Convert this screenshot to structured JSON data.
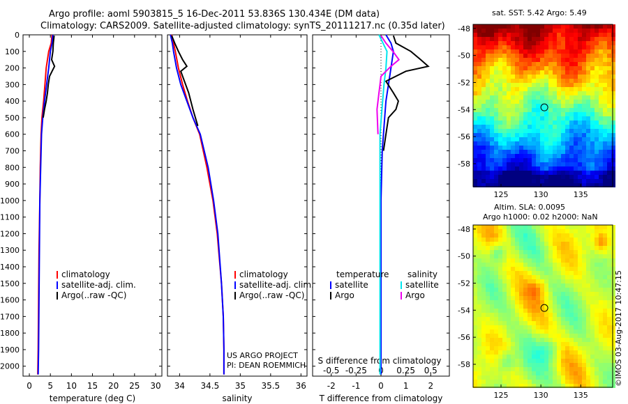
{
  "header": {
    "title_line1": "Argo profile: aoml 5903815_5 16-Dec-2011 53.836S 130.434E (DM data)",
    "title_line2": "Climatology: CARS2009. Satellite-adjusted climatology: synTS_20111217.nc (0.35d later)"
  },
  "colors": {
    "climatology": "#ff0000",
    "satellite": "#0000ff",
    "argo": "#000000",
    "salinity_satellite": "#00e5ee",
    "salinity_argo": "#ee00ee"
  },
  "chart_data": [
    {
      "type": "line",
      "id": "temperature",
      "xlabel": "temperature (deg C)",
      "ylabel": "",
      "xlim": [
        -1.5,
        31.5
      ],
      "ylim": [
        2060,
        0
      ],
      "xticks": [
        0,
        5,
        10,
        15,
        20,
        25,
        30
      ],
      "yticks": [
        0,
        100,
        200,
        300,
        400,
        500,
        600,
        700,
        800,
        900,
        1000,
        1100,
        1200,
        1300,
        1400,
        1500,
        1600,
        1700,
        1800,
        1900,
        2000
      ],
      "legend": [
        "climatology",
        "satellite-adj. clim.",
        "Argo(..raw -QC)"
      ],
      "series": [
        {
          "name": "climatology",
          "color": "#ff0000",
          "x": [
            5.4,
            5.2,
            4.6,
            4.0,
            3.7,
            3.4,
            3.0,
            2.8,
            2.6,
            2.5,
            2.3,
            2.2,
            2.1,
            2.0
          ],
          "y": [
            0,
            50,
            100,
            200,
            300,
            400,
            500,
            600,
            800,
            1000,
            1300,
            1600,
            1900,
            2050
          ]
        },
        {
          "name": "satellite-adj. clim.",
          "color": "#0000ff",
          "x": [
            5.6,
            5.4,
            5.0,
            4.6,
            4.1,
            3.6,
            3.2,
            2.9,
            2.7,
            2.5,
            2.4,
            2.3,
            2.2,
            2.1
          ],
          "y": [
            0,
            50,
            100,
            200,
            300,
            400,
            500,
            600,
            800,
            1000,
            1300,
            1600,
            1900,
            2050
          ]
        },
        {
          "name": "Argo(..raw -QC)",
          "color": "#000000",
          "x": [
            5.9,
            5.7,
            5.6,
            5.3,
            6.0,
            5.4,
            4.8,
            4.5,
            4.3,
            4.0,
            3.6,
            3.3
          ],
          "y": [
            5,
            50,
            100,
            150,
            190,
            220,
            250,
            300,
            350,
            400,
            450,
            500
          ]
        }
      ]
    },
    {
      "type": "line",
      "id": "salinity",
      "xlabel": "salinity",
      "ylabel": "",
      "xlim": [
        33.8,
        36.1
      ],
      "ylim": [
        2060,
        0
      ],
      "xticks": [
        34,
        34.5,
        35,
        35.5,
        36
      ],
      "xtick_labels": [
        "34",
        "34.5",
        "35",
        "35.5",
        "36"
      ],
      "legend": [
        "climatology",
        "satellite-adj. clim.",
        "Argo(..raw -QC)"
      ],
      "series": [
        {
          "name": "climatology",
          "color": "#ff0000",
          "x": [
            33.87,
            33.9,
            33.93,
            33.98,
            34.05,
            34.13,
            34.22,
            34.33,
            34.45,
            34.55,
            34.62,
            34.69,
            34.72,
            34.73,
            34.73
          ],
          "y": [
            0,
            50,
            100,
            200,
            300,
            400,
            500,
            600,
            800,
            1000,
            1200,
            1500,
            1700,
            1900,
            2050
          ]
        },
        {
          "name": "satellite-adj. clim.",
          "color": "#0000ff",
          "x": [
            33.85,
            33.88,
            33.9,
            33.95,
            34.02,
            34.12,
            34.22,
            34.34,
            34.47,
            34.56,
            34.63,
            34.69,
            34.72,
            34.73,
            34.73
          ],
          "y": [
            0,
            50,
            100,
            200,
            300,
            400,
            500,
            600,
            800,
            1000,
            1200,
            1500,
            1700,
            1900,
            2050
          ]
        },
        {
          "name": "Argo(..raw -QC)",
          "color": "#000000",
          "x": [
            33.87,
            33.92,
            33.98,
            34.05,
            34.12,
            34.02,
            34.08,
            34.15,
            34.22,
            34.3
          ],
          "y": [
            5,
            50,
            100,
            150,
            190,
            220,
            280,
            350,
            450,
            550
          ]
        }
      ],
      "annotation_line1": "US ARGO PROJECT",
      "annotation_line2": "PI: DEAN ROEMMICH"
    },
    {
      "type": "line",
      "id": "differences",
      "xlabel": "T difference from climatology",
      "xlabel_top": "S difference from climatology",
      "xlim": [
        -2.75,
        2.75
      ],
      "ylim": [
        2060,
        0
      ],
      "xticks": [
        -2,
        -1,
        0,
        1,
        2
      ],
      "xtick_labels": [
        "-2",
        "-1",
        "0",
        "1",
        "2"
      ],
      "xticks_top_labels": [
        "-0.5",
        "-0.25",
        "0",
        "0.25",
        "0.5"
      ],
      "xticks_top_values": [
        -0.5,
        -0.25,
        0,
        0.25,
        0.5
      ],
      "zero_line": "dotted",
      "legend_temperature_title": "temperature",
      "legend_salinity_title": "salinity",
      "legend_temperature": [
        "satellite",
        "Argo"
      ],
      "legend_salinity": [
        "satellite",
        "Argo"
      ],
      "series": [
        {
          "name": "temperature satellite",
          "color": "#0000ff",
          "x": [
            0.2,
            0.4,
            0.5,
            0.4,
            0.3,
            0.2,
            0.15,
            0.05,
            0.0,
            0.0
          ],
          "y": [
            0,
            50,
            100,
            200,
            300,
            400,
            500,
            700,
            1000,
            2050
          ]
        },
        {
          "name": "temperature Argo",
          "color": "#000000",
          "x": [
            0.5,
            0.6,
            1.2,
            1.6,
            1.9,
            1.0,
            0.2,
            0.5,
            0.7,
            0.6,
            0.3,
            0.2,
            0.1
          ],
          "y": [
            5,
            50,
            100,
            150,
            190,
            220,
            280,
            350,
            400,
            450,
            500,
            600,
            700
          ]
        },
        {
          "name": "salinity satellite",
          "color": "#00e5ee",
          "x": [
            -0.02,
            0.02,
            0.06,
            0.05,
            0.03,
            0.01,
            -0.01,
            -0.01,
            -0.01
          ],
          "y": [
            0,
            50,
            100,
            200,
            300,
            450,
            600,
            1000,
            2050
          ]
        },
        {
          "name": "salinity Argo",
          "color": "#ee00ee",
          "x": [
            0.0,
            0.05,
            0.12,
            0.18,
            0.1,
            0.0,
            -0.01,
            -0.02,
            -0.04,
            -0.03
          ],
          "y": [
            5,
            50,
            100,
            150,
            190,
            250,
            300,
            350,
            450,
            600
          ]
        }
      ]
    },
    {
      "type": "heatmap",
      "id": "sst-map",
      "title": "sat. SST: 5.42  Argo: 5.49",
      "xlim": [
        121.5,
        139
      ],
      "ylim": [
        -59.7,
        -47.7
      ],
      "xticks": [
        125,
        130,
        135
      ],
      "yticks": [
        -48,
        -50,
        -52,
        -54,
        -56,
        -58
      ],
      "marker": {
        "lon": 130.434,
        "lat": -53.836
      }
    },
    {
      "type": "heatmap",
      "id": "sla-map",
      "title_line1": "Altim. SLA: 0.0095",
      "title_line2": "Argo h1000: 0.02 h2000: NaN",
      "xlim": [
        121.5,
        139
      ],
      "ylim": [
        -59.7,
        -47.7
      ],
      "xticks": [
        125,
        130,
        135
      ],
      "yticks": [
        -48,
        -50,
        -52,
        -54,
        -56,
        -58
      ],
      "marker": {
        "lon": 130.434,
        "lat": -53.836
      }
    }
  ],
  "footer": {
    "stamp": "©IMOS 03-Aug-2017 10:47:15"
  }
}
